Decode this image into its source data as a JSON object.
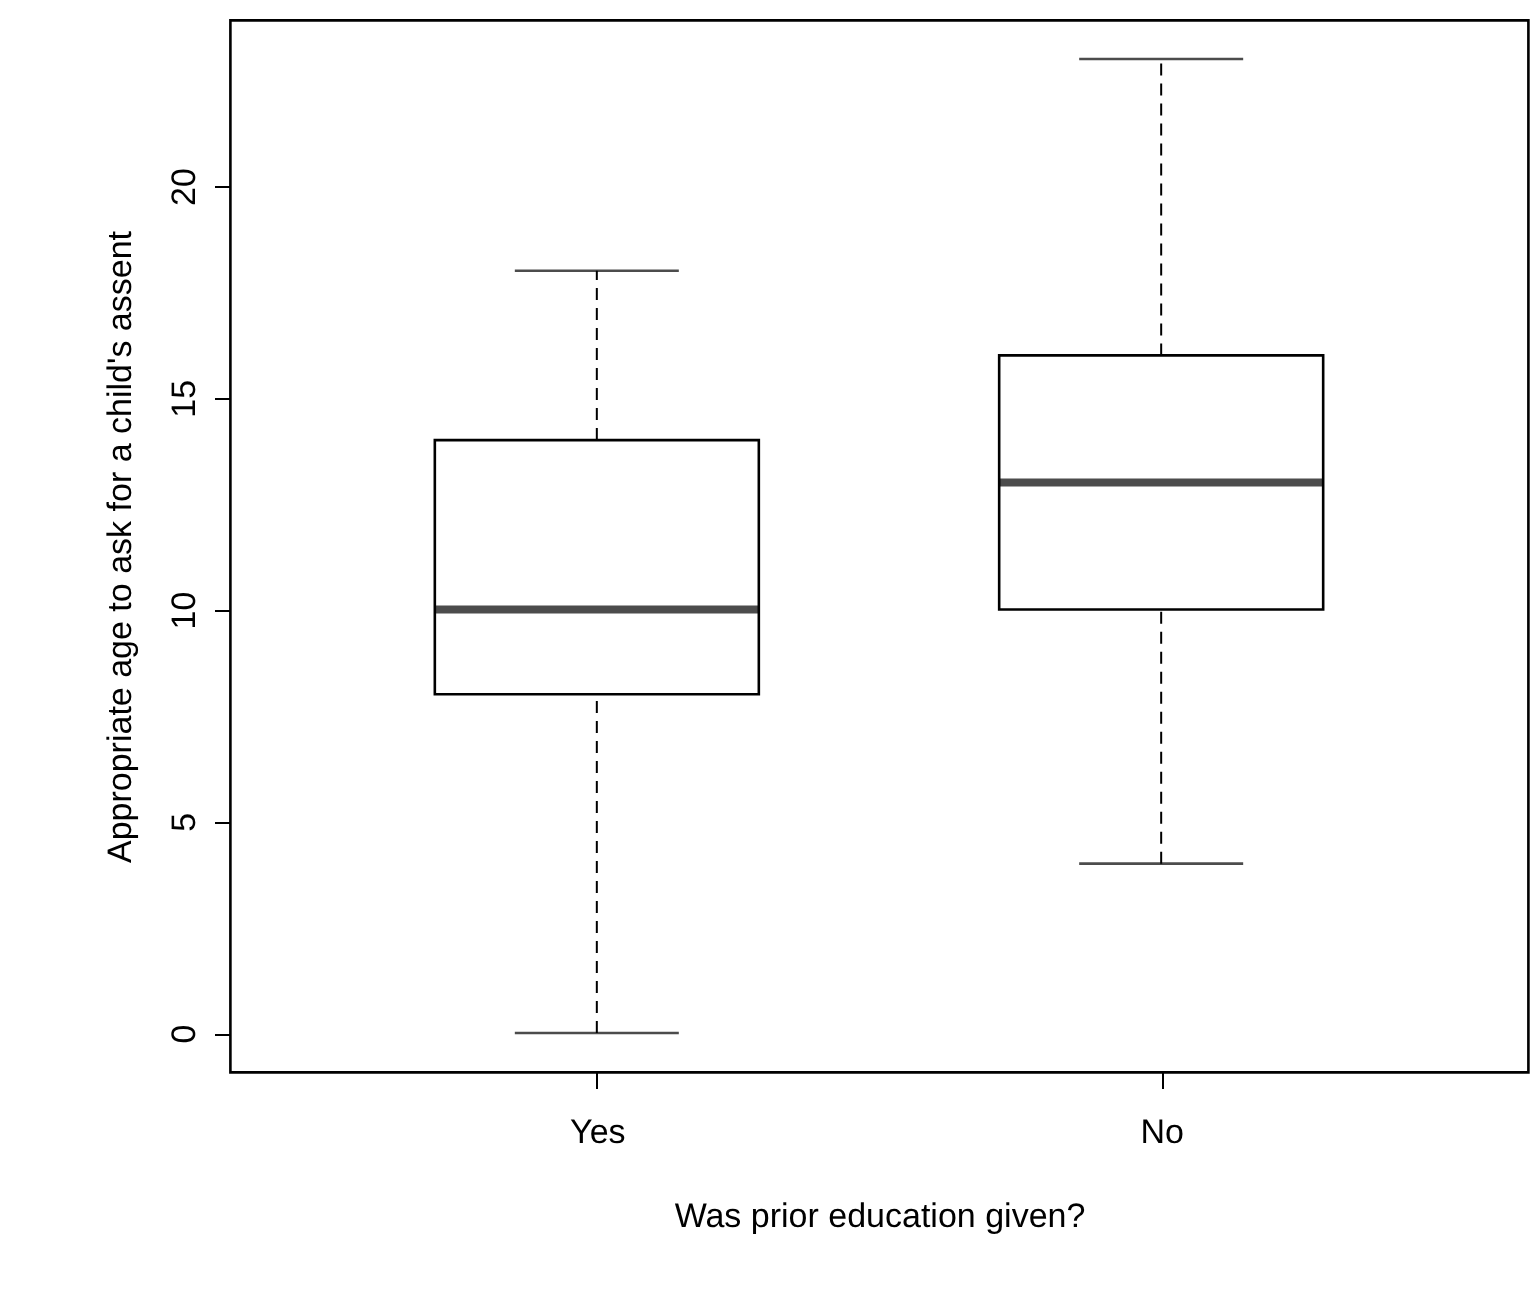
{
  "chart_data": {
    "type": "box",
    "xlabel": "Was prior education given?",
    "ylabel": "Appropriate age to ask for a child's assent",
    "categories": [
      "Yes",
      "No"
    ],
    "boxes": [
      {
        "low": 0,
        "q1": 8,
        "median": 10,
        "q3": 14,
        "high": 18
      },
      {
        "low": 4,
        "q1": 10,
        "median": 13,
        "q3": 16,
        "high": 23
      }
    ],
    "ylim": [
      -0.92,
      23.92
    ],
    "yticks": [
      0,
      5,
      10,
      15,
      20
    ],
    "grid": false
  }
}
